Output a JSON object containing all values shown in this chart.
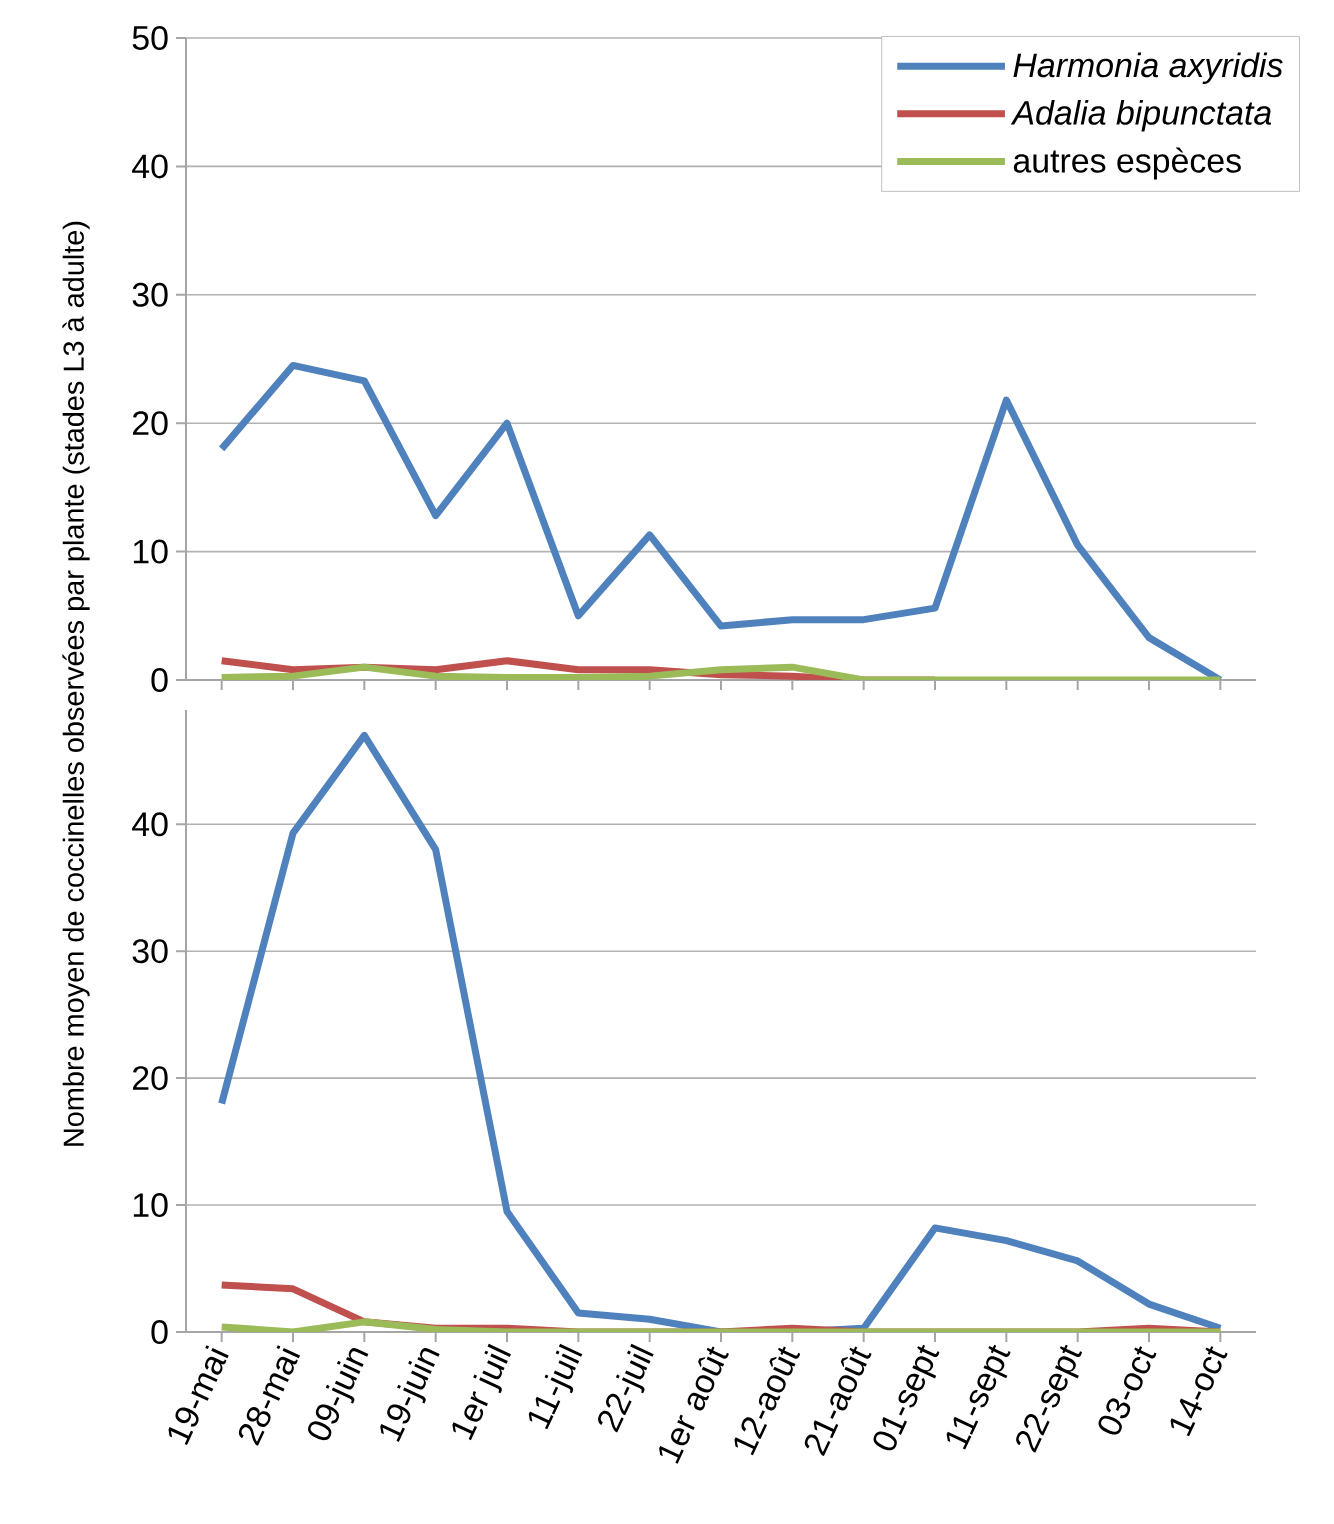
{
  "chart_data": [
    {
      "type": "line",
      "ylabel": "Nombre moyen de coccinelles observées par plante (stades L3 à adulte)",
      "categories": [
        null,
        null,
        null,
        null,
        null,
        null,
        null,
        null,
        null,
        null,
        null,
        null,
        null,
        null,
        null
      ],
      "series": [
        {
          "name": "*Harmonia axyridis*",
          "color": "#4f81bd",
          "values": [
            18,
            24.5,
            23.3,
            12.8,
            20,
            5,
            11.3,
            4.2,
            4.7,
            4.7,
            5.6,
            21.8,
            10.5,
            3.3,
            0
          ]
        },
        {
          "name": "*Adalia bipunctata*",
          "color": "#c0504d",
          "values": [
            1.5,
            0.8,
            1.0,
            0.8,
            1.5,
            0.8,
            0.8,
            0.4,
            0.3,
            0,
            0,
            null,
            null,
            null,
            null
          ]
        },
        {
          "name": "autres espèces",
          "color": "#9bbb59",
          "values": [
            0.2,
            0.3,
            1.0,
            0.3,
            0.2,
            0.2,
            0.3,
            0.8,
            1.0,
            0,
            0,
            0,
            0,
            0,
            0
          ]
        }
      ],
      "ylim": [
        0,
        50
      ],
      "yticks": [
        0,
        10,
        20,
        30,
        40,
        50
      ],
      "grid": "y",
      "legend": "top right",
      "tick_labels": "y"
    },
    {
      "type": "line",
      "categories": [
        "19-mai",
        "28-mai",
        "09-juin",
        "19-juin",
        "1er juil",
        "11-juil",
        "22-juil",
        "1er août",
        "12-août",
        "21-août",
        "01-sept",
        "11-sept",
        "22-sept",
        "03-oct",
        "14-oct"
      ],
      "series": [
        {
          "color": "#4f81bd",
          "values": [
            18,
            39.3,
            47,
            38,
            9.5,
            1.5,
            1,
            0,
            0,
            0.3,
            8.2,
            7.2,
            5.6,
            2.2,
            0.3
          ]
        },
        {
          "color": "#c0504d",
          "values": [
            3.7,
            3.4,
            0.8,
            0.3,
            0.3,
            0,
            0,
            0,
            0.3,
            0,
            0,
            0,
            0,
            0.3,
            0
          ]
        },
        {
          "color": "#9bbb59",
          "values": [
            0.4,
            0,
            0.8,
            0.2,
            0,
            0,
            0,
            0,
            0,
            0,
            0,
            0,
            0,
            0,
            0
          ]
        }
      ],
      "ylim": [
        0,
        49
      ],
      "yticks": [
        0,
        10,
        20,
        30,
        40
      ],
      "grid": "y"
    }
  ]
}
